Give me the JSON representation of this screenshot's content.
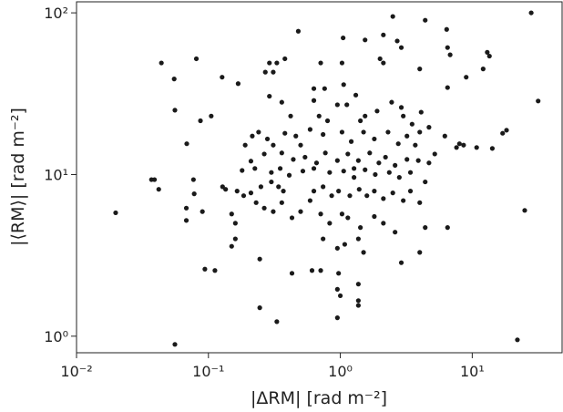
{
  "chart_data": {
    "type": "scatter",
    "x_label": "|ΔRM| [rad m⁻²]",
    "y_label": "|⟨RM⟩| [rad m⁻²]",
    "xscale": "log",
    "yscale": "log",
    "xlim": [
      0.01,
      48
    ],
    "ylim": [
      0.79,
      117
    ],
    "xticks": [
      {
        "value": 0.01,
        "label": "10⁻²"
      },
      {
        "value": 0.1,
        "label": "10⁻¹"
      },
      {
        "value": 1,
        "label": "10⁰"
      },
      {
        "value": 10,
        "label": "10¹"
      }
    ],
    "yticks": [
      {
        "value": 1,
        "label": "10⁰"
      },
      {
        "value": 10,
        "label": "10¹"
      },
      {
        "value": 100,
        "label": "10²"
      }
    ],
    "color": "#1a1a1a",
    "x": [
      0.0198,
      0.0557,
      22,
      28,
      31.6,
      25,
      2.5,
      4.4,
      0.48,
      0.044,
      0.055,
      0.081,
      0.0557,
      0.105,
      0.087,
      0.0685,
      0.127,
      0.168,
      0.29,
      0.33,
      0.27,
      0.31,
      0.38,
      0.71,
      1.03,
      1.05,
      1.54,
      2.12,
      2.7,
      2.9,
      2.0,
      2.12,
      6.4,
      6.5,
      6.8,
      9.0,
      12.1,
      13.5,
      13,
      4.0,
      6.5,
      0.76,
      0.63,
      1.06,
      1.31,
      0.29,
      0.36,
      0.63,
      0.95,
      1.12,
      0.42,
      0.8,
      1.42,
      1.54,
      1.9,
      2.9,
      3.0,
      4.1,
      2.45,
      3.5,
      4.7,
      6.2,
      8.0,
      10.8,
      17,
      18.2,
      0.215,
      0.24,
      0.28,
      0.19,
      0.31,
      0.38,
      0.46,
      0.5,
      0.59,
      0.74,
      1.03,
      1.21,
      1.5,
      1.81,
      2.3,
      2.75,
      3.2,
      3.7,
      5.2,
      7.6,
      8.6,
      14.2,
      0.265,
      0.36,
      0.44,
      0.54,
      0.66,
      0.77,
      0.95,
      1.14,
      1.37,
      1.67,
      1.96,
      2.2,
      2.6,
      3.2,
      3.9,
      4.7,
      0.225,
      0.3,
      0.35,
      0.41,
      0.52,
      0.63,
      0.83,
      1.06,
      1.27,
      1.54,
      1.84,
      2.35,
      2.8,
      3.4,
      0.128,
      0.135,
      0.037,
      0.039,
      0.042,
      0.077,
      0.078,
      0.068,
      0.09,
      0.068,
      0.094,
      0.112,
      0.15,
      0.16,
      0.16,
      0.185,
      0.21,
      0.25,
      0.3,
      0.34,
      0.37,
      0.23,
      0.265,
      0.31,
      0.36,
      0.43,
      0.5,
      0.59,
      0.63,
      0.74,
      0.86,
      0.97,
      1.18,
      1.39,
      1.59,
      1.81,
      2.12,
      2.5,
      3.0,
      3.4,
      4.0,
      4.4,
      0.71,
      0.83,
      1.03,
      1.14,
      1.42,
      1.81,
      2.12,
      2.6,
      4.4,
      6.5,
      0.74,
      0.95,
      1.08,
      1.37,
      1.5,
      4.0,
      2.9,
      0.15,
      0.245,
      0.43,
      0.61,
      0.71,
      0.97,
      1.37,
      0.95,
      1.0,
      1.37,
      1.37,
      0.245,
      0.33,
      0.95,
      1.27,
      4.0,
      0.69,
      0.21,
      0.18,
      0.165
    ],
    "values": [
      5.8,
      0.89,
      0.95,
      100,
      28.5,
      6.0,
      95,
      90,
      77,
      49,
      39,
      52,
      25,
      23,
      21.5,
      15.5,
      40,
      36.5,
      49,
      49,
      43,
      43,
      52,
      49,
      49,
      70,
      68,
      73,
      67,
      61,
      52,
      49,
      79,
      61,
      55,
      40,
      45,
      54,
      57,
      45,
      34.5,
      34,
      34,
      36,
      31,
      30.5,
      28,
      28.7,
      27,
      27,
      23,
      21.5,
      21.5,
      23,
      24.7,
      26,
      23,
      24.3,
      28,
      20.5,
      19.6,
      17.3,
      15.5,
      14.7,
      18,
      18.8,
      17.3,
      18.3,
      16.6,
      15.2,
      15.2,
      18,
      17.3,
      15.2,
      19.0,
      17.7,
      18.3,
      16,
      18.3,
      16.6,
      18.3,
      15.5,
      17.3,
      15.2,
      13.4,
      14.7,
      15.2,
      14.5,
      13.4,
      13.6,
      12.4,
      12.8,
      11.8,
      13.6,
      12.2,
      13.4,
      12.2,
      13.6,
      11.8,
      12.8,
      11.4,
      12.4,
      12.2,
      11.8,
      10.9,
      10.3,
      10.9,
      9.9,
      10.5,
      10.9,
      10.3,
      10.5,
      9.6,
      10.7,
      10,
      10.3,
      9.6,
      10.3,
      8.4,
      8.1,
      9.3,
      9.3,
      8.1,
      9.3,
      7.6,
      6.2,
      5.9,
      5.2,
      2.6,
      2.55,
      5.7,
      5.0,
      4.0,
      7.4,
      7.7,
      8.4,
      9.0,
      8.4,
      7.9,
      6.7,
      6.2,
      5.9,
      6.7,
      5.4,
      5.9,
      6.9,
      7.9,
      8.4,
      7.4,
      7.9,
      7.4,
      8.1,
      7.4,
      7.9,
      7.1,
      7.7,
      6.9,
      7.9,
      6.7,
      9.0,
      5.7,
      5.0,
      5.7,
      5.4,
      4.7,
      5.5,
      5.0,
      4.4,
      4.7,
      4.7,
      4.0,
      3.5,
      3.7,
      4.0,
      3.3,
      3.3,
      2.85,
      3.6,
      3.0,
      2.45,
      2.55,
      2.55,
      2.45,
      2.1,
      1.95,
      1.78,
      1.66,
      1.55,
      1.5,
      1.23,
      1.3,
      10.9,
      18.3,
      23,
      12.1,
      10.6,
      7.9
    ]
  }
}
